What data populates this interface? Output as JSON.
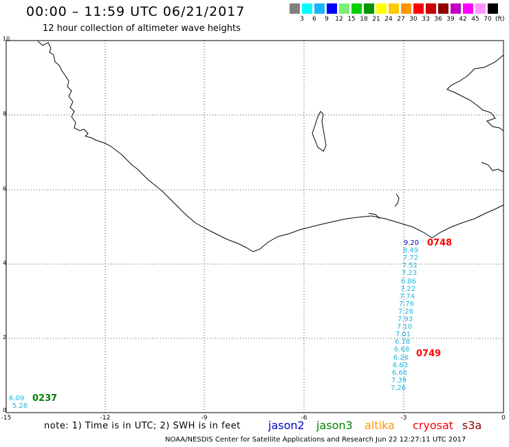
{
  "title": "00:00 – 11:59 UTC 06/21/2017",
  "subtitle": "12 hour collection of altimeter wave heights",
  "color_scale": {
    "colors": [
      "#808080",
      "#00ffff",
      "#18b4ff",
      "#0000ff",
      "#78f078",
      "#00d000",
      "#009600",
      "#ffff00",
      "#ffc800",
      "#ff9600",
      "#ff0000",
      "#c80000",
      "#8c0000",
      "#c000c0",
      "#ff00ff",
      "#ff96ff",
      "#000000"
    ],
    "ticks": [
      "3",
      "6",
      "9",
      "12",
      "15",
      "18",
      "21",
      "24",
      "27",
      "30",
      "33",
      "36",
      "39",
      "42",
      "45",
      "70"
    ],
    "unit": "(ft)"
  },
  "map": {
    "x_ticks": [
      "-15",
      "-12",
      "-9",
      "-6",
      "-3",
      "0"
    ],
    "y_ticks": [
      "10",
      "8",
      "6",
      "4",
      "2",
      "0"
    ]
  },
  "track_main": {
    "values": [
      "9.20",
      "8.49",
      "7.72",
      "7.51",
      "7.23",
      "6.86",
      "7.22",
      "7.74",
      "7.76",
      "7.26",
      "7.93",
      "7.10",
      "7.01",
      "6.78",
      "6.68",
      "6.26",
      "6.63",
      "6.66",
      "7.39",
      "7.26"
    ],
    "time_top": "0748",
    "time_mid": "0749",
    "time_color": "#ff0000"
  },
  "track_sw": {
    "values": [
      "6.09",
      "5.26"
    ],
    "time": "0237",
    "time_color": "#008000"
  },
  "note": "note: 1) Time is in UTC; 2) SWH is in feet",
  "satellites": [
    {
      "name": "jason2",
      "color": "#0000c8"
    },
    {
      "name": "jason3",
      "color": "#008000"
    },
    {
      "name": "altika",
      "color": "#ff9600"
    },
    {
      "name": "cryosat",
      "color": "#ff0000"
    },
    {
      "name": "s3a",
      "color": "#8c0000"
    }
  ],
  "credit": "NOAA/NESDIS Center for Satellite Applications and Research   Jun 22 12:27:11 UTC 2017"
}
